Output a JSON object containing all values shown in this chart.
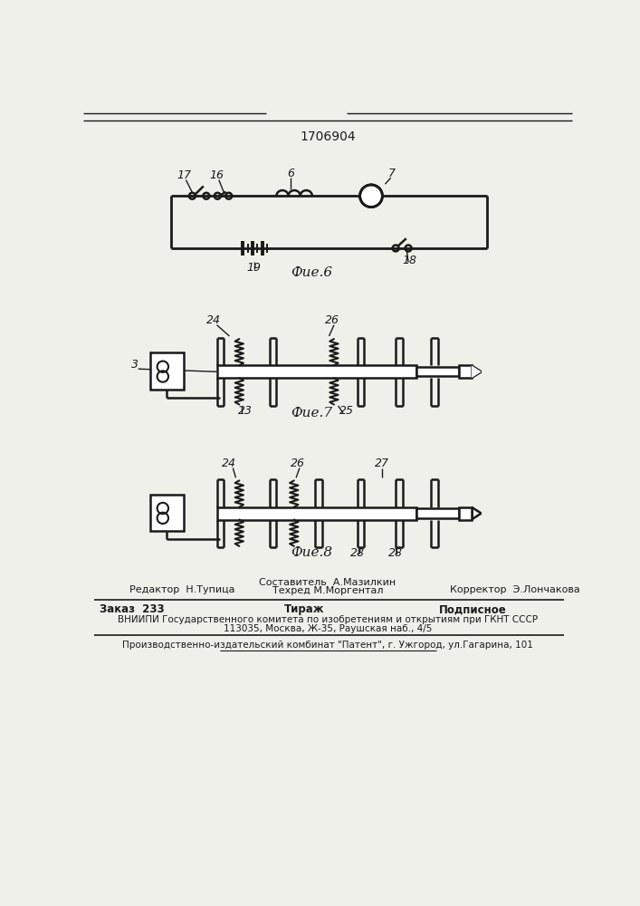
{
  "patent_number": "1706904",
  "fig6_label": "Фие.6",
  "fig7_label": "Фие.7",
  "fig8_label": "Фие.8",
  "footer_line1_col1": "Редактор  Н.Тупица",
  "footer_line1_col2": "Составитель  А.Мазилкин",
  "footer_line1_col3": "Корректор  Э.Лончакова",
  "footer_line2_col2": "Техред М.Моргентал",
  "footer_bold1": "Заказ  233",
  "footer_bold2": "Тираж",
  "footer_bold3": "Подписное",
  "footer_org": "ВНИИПИ Государственного комитета по изобретениям и открытиям при ГКНТ СССР",
  "footer_addr": "113035, Москва, Ж-35, Раушская наб., 4/5",
  "footer_plant": "Производственно-издательский комбинат \"Патент\", г. Ужгород, ул.Гагарина, 101",
  "bg_color": "#f0f0eb",
  "line_color": "#1a1a1a",
  "text_color": "#1a1a1a"
}
